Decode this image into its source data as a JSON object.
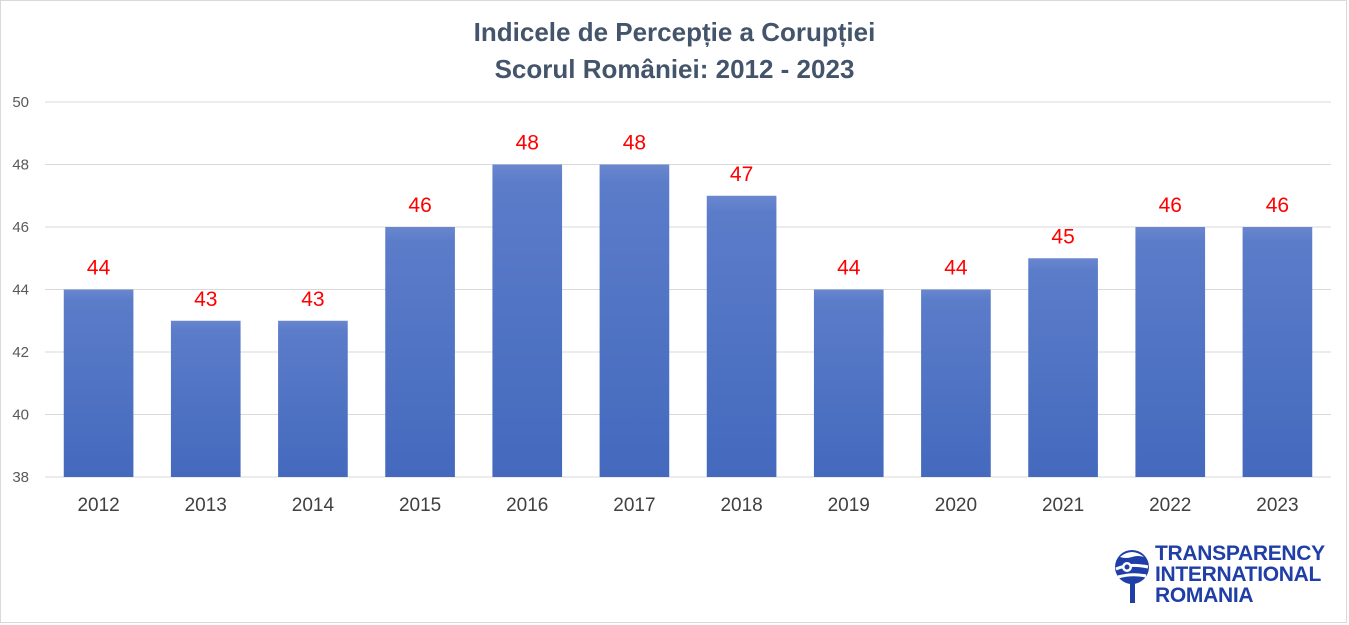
{
  "chart_data": {
    "type": "bar",
    "title": "Indicele de Percepție a Corupției",
    "subtitle": "Scorul României: 2012 - 2023",
    "xlabel": "",
    "ylabel": "",
    "categories": [
      "2012",
      "2013",
      "2014",
      "2015",
      "2016",
      "2017",
      "2018",
      "2019",
      "2020",
      "2021",
      "2022",
      "2023"
    ],
    "values": [
      44,
      43,
      43,
      46,
      48,
      48,
      47,
      44,
      44,
      45,
      46,
      46
    ],
    "ylim": [
      38,
      50
    ],
    "yticks": [
      38,
      40,
      42,
      44,
      46,
      48,
      50
    ],
    "grid": true,
    "legend": "none",
    "colors": {
      "bar_top": "#5f7fcb",
      "bar_bottom": "#4469bd",
      "data_label": "#ff0000",
      "title": "#44546a",
      "gridline": "#d9d9d9"
    }
  },
  "logo": {
    "line1": "TRANSPARENCY",
    "line2": "INTERNATIONAL",
    "line3": "ROMANIA",
    "icon": "globe-logo-icon",
    "color": "#1f3fa6"
  }
}
